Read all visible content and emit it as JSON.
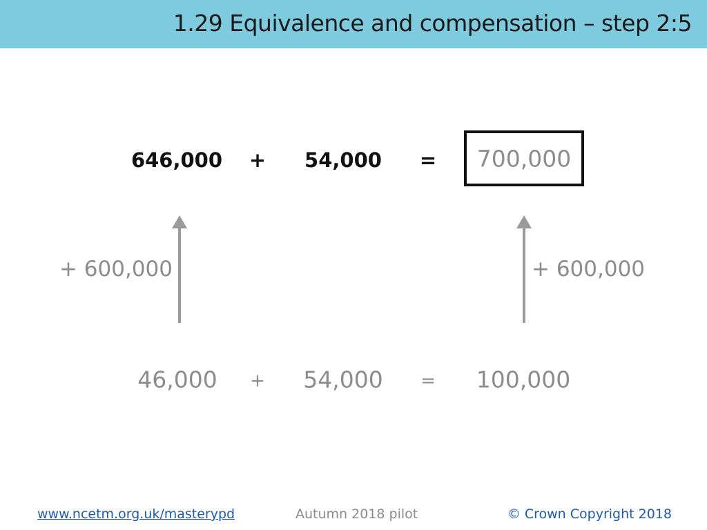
{
  "header": {
    "title": "1.29 Equivalence and compensation – step 2:5"
  },
  "top_row": [
    "646,000",
    "+",
    "54,000",
    "=",
    "700,000"
  ],
  "annotations": {
    "left": "+ 600,000",
    "right": "+ 600,000"
  },
  "bottom_row": [
    "46,000",
    "+",
    "54,000",
    "=",
    "100,000"
  ],
  "footer": {
    "link": "www.ncetm.org.uk/masterypd",
    "center": "Autumn 2018 pilot",
    "right": "© Crown Copyright 2018"
  }
}
